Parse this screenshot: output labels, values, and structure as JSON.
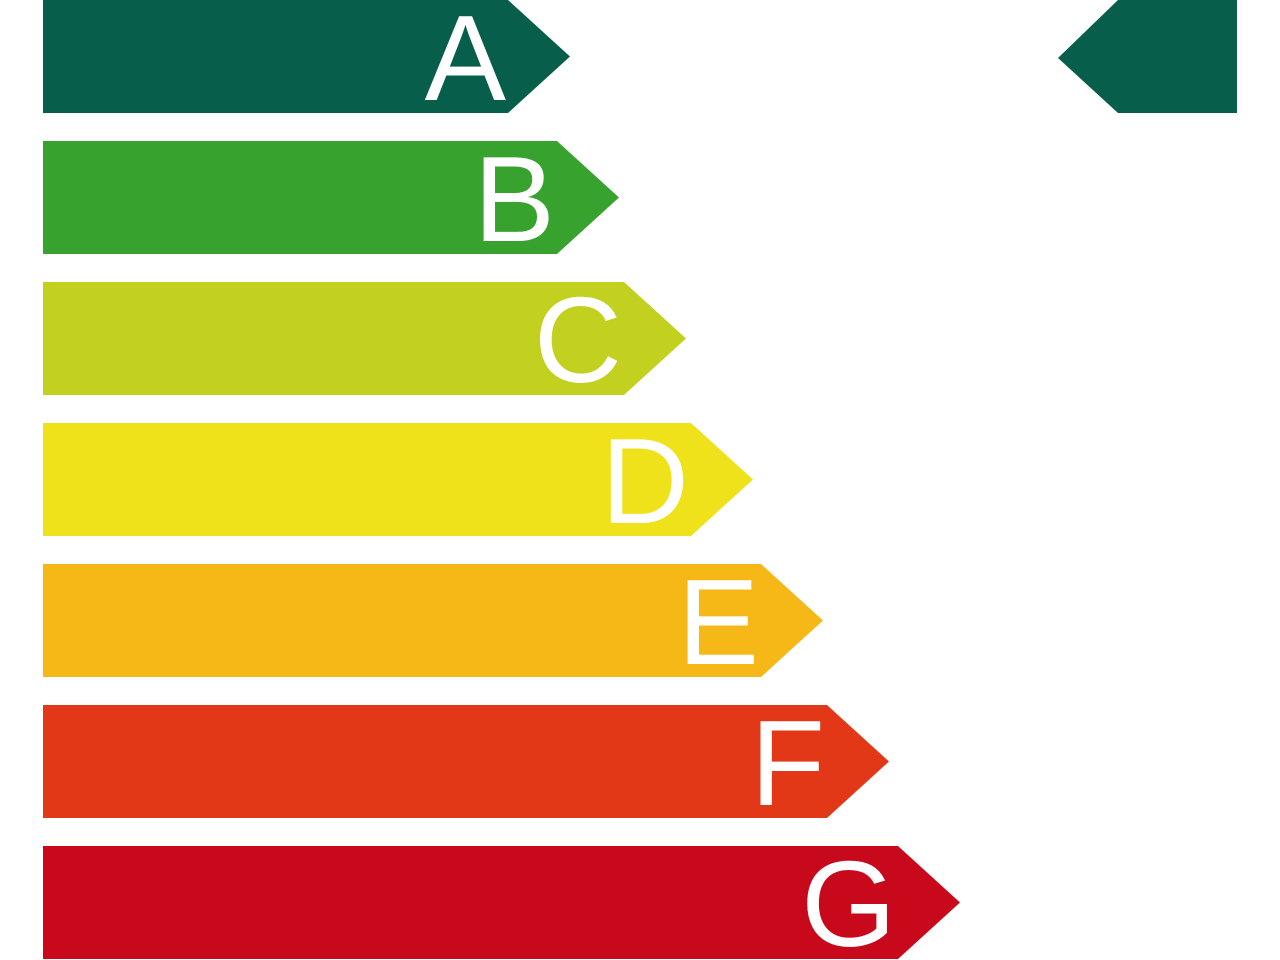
{
  "label": {
    "classes": [
      {
        "letter": "A",
        "color": "#075e4a"
      },
      {
        "letter": "B",
        "color": "#38a22f"
      },
      {
        "letter": "C",
        "color": "#c2d01f"
      },
      {
        "letter": "D",
        "color": "#efe21a"
      },
      {
        "letter": "E",
        "color": "#f5b817"
      },
      {
        "letter": "F",
        "color": "#e33817"
      },
      {
        "letter": "G",
        "color": "#c8091b"
      }
    ],
    "indicator": {
      "points_to": "A",
      "color": "#075e4a"
    }
  }
}
